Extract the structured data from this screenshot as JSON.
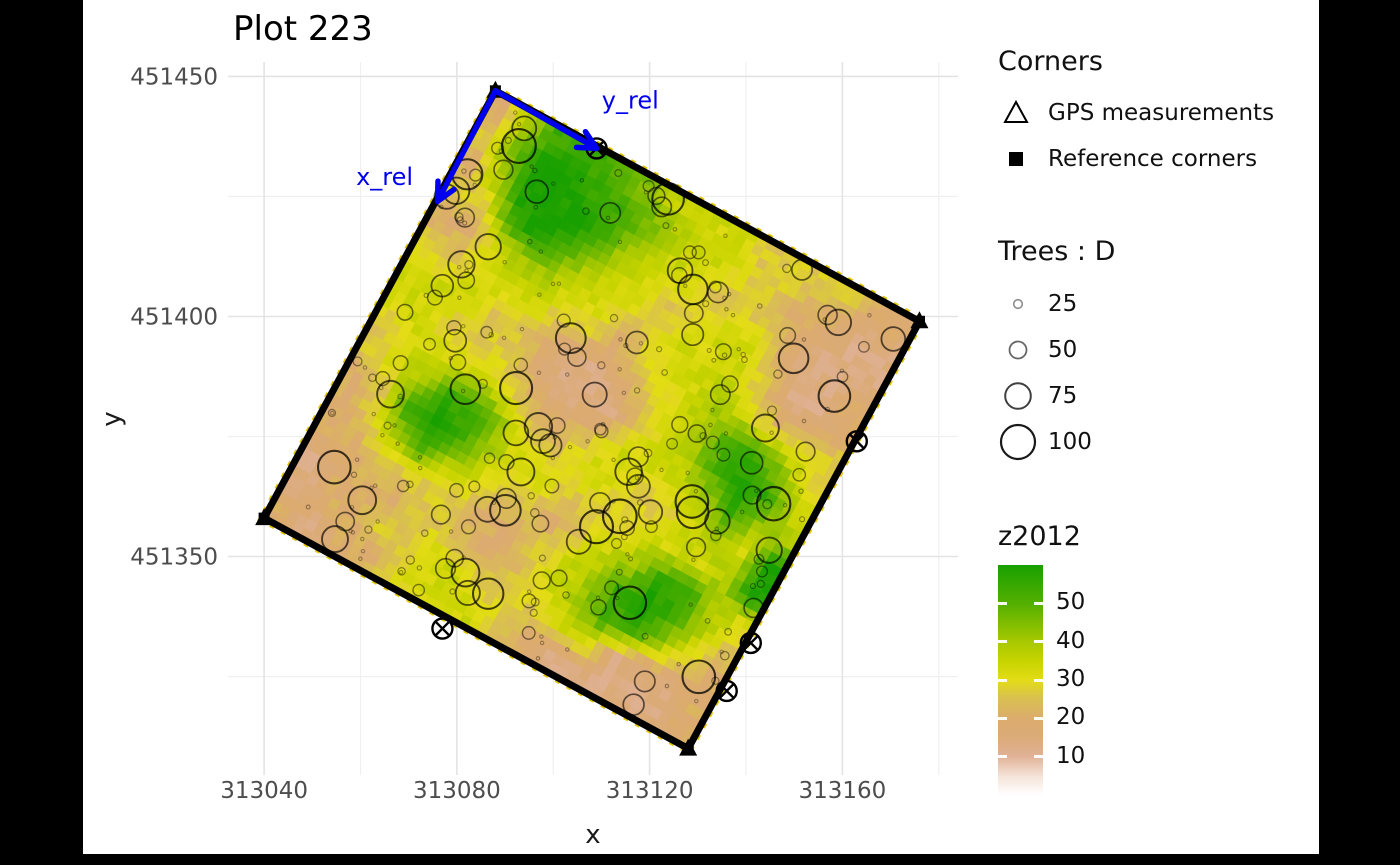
{
  "title": "Plot 223",
  "axes": {
    "x": {
      "label": "x",
      "range": [
        313032.5,
        313184
      ],
      "major_ticks": [
        313040,
        313080,
        313120,
        313160
      ],
      "minor_ticks": [
        313060,
        313100,
        313140,
        313180
      ]
    },
    "y": {
      "label": "y",
      "range": [
        451304.5,
        451453
      ],
      "major_ticks": [
        451350,
        451400,
        451450
      ],
      "minor_ticks": [
        451325,
        451375,
        451425
      ]
    }
  },
  "legends": {
    "corners": {
      "title": "Corners",
      "items": [
        {
          "symbol": "open-triangle",
          "label": "GPS measurements"
        },
        {
          "symbol": "filled-square",
          "label": "Reference corners"
        }
      ]
    },
    "trees": {
      "title": "Trees : D",
      "sizes": [
        25,
        50,
        75,
        100
      ]
    },
    "z2012": {
      "title": "z2012",
      "tick_values": [
        50,
        40,
        30,
        20,
        10
      ],
      "range": [
        0,
        60
      ]
    }
  },
  "chart_data": {
    "type": "spatial-map",
    "title": "Plot 223",
    "xlabel": "x",
    "ylabel": "y",
    "plot_square": {
      "side_length_m": 100,
      "corners_xy": {
        "origin_top": [
          313088,
          451447
        ],
        "right": [
          313176,
          451399
        ],
        "bottom": [
          313128,
          451310
        ],
        "left": [
          313040,
          451358
        ]
      },
      "border_color": "#000000",
      "reference_dash_color": "#e2c400"
    },
    "corner_markers": {
      "gps_symbol": "triangle",
      "reference_symbol": "square",
      "positions": [
        [
          313088,
          451447
        ],
        [
          313176,
          451399
        ],
        [
          313128,
          451310
        ],
        [
          313040,
          451358
        ]
      ]
    },
    "gps_points": {
      "symbol": "circle-cross",
      "positions": [
        [
          313109,
          451435
        ],
        [
          313163,
          451374
        ],
        [
          313077,
          451335
        ],
        [
          313141,
          451332
        ],
        [
          313136,
          451322
        ]
      ]
    },
    "annotations": [
      {
        "text": "x_rel",
        "color": "#0000ee",
        "label_at": [
          313065,
          451429
        ],
        "arrow_from": [
          313088,
          451447
        ],
        "arrow_to": [
          313076,
          451424
        ]
      },
      {
        "text": "y_rel",
        "color": "#0000ee",
        "label_at": [
          313116,
          451445
        ],
        "arrow_from": [
          313088,
          451447
        ],
        "arrow_to": [
          313109,
          451435
        ]
      }
    ],
    "raster": {
      "name": "z2012",
      "value_range": [
        0,
        60
      ],
      "palette": [
        [
          0.0,
          "#ffffff"
        ],
        [
          0.08,
          "#f5e4d9"
        ],
        [
          0.17,
          "#e0b195"
        ],
        [
          0.25,
          "#dbab78"
        ],
        [
          0.33,
          "#dcab6e"
        ],
        [
          0.42,
          "#d9c050"
        ],
        [
          0.5,
          "#e3dc16"
        ],
        [
          0.58,
          "#c8d400"
        ],
        [
          0.67,
          "#a6c800"
        ],
        [
          0.83,
          "#55b000"
        ],
        [
          1.0,
          "#18a000"
        ]
      ],
      "grid_note": "digit d encodes z = d/9*60; rows run from origin corner toward left corner, cols toward right corner",
      "grid_digits": [
        "3688876555444433",
        "4799887655443322",
        "3699986554443222",
        "4489865544553223",
        "3356655445554223",
        "4455544345565444",
        "5554432234568864",
        "5544432224568985",
        "4555543345556866",
        "4568864455445659",
        "3489865544455569",
        "3468654434568865",
        "3344443345689864",
        "2333443345688643",
        "2334455444552223",
        "3233455543222223"
      ]
    },
    "trees": {
      "legend_title": "Trees : D",
      "size_breaks": [
        25,
        50,
        75,
        100
      ],
      "count": 300,
      "seed": 11,
      "d_range": [
        5,
        100
      ],
      "positions": "procedural-approximation"
    }
  },
  "style": {
    "annotation_blue": "#0000ee",
    "grid_major": "#e3e3e3",
    "grid_minor": "#f0f0f0",
    "tick_label_color": "#4d4d4d",
    "panel_bg": "#ffffff",
    "frame_color": "#000000"
  }
}
